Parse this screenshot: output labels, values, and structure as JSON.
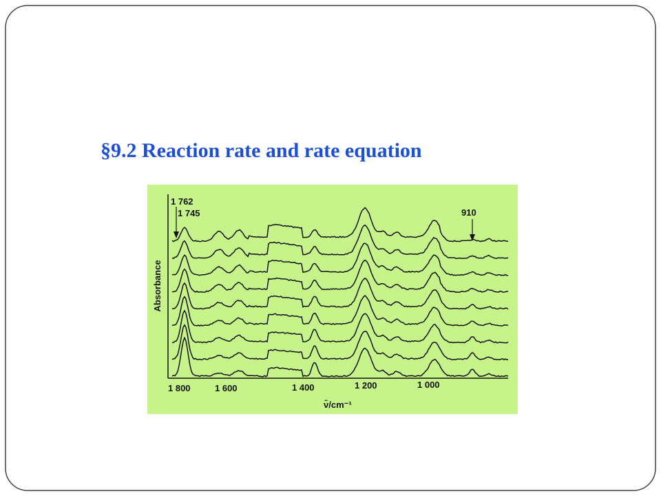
{
  "slide": {
    "title": "§9.2 Reaction rate and rate equation"
  },
  "figure": {
    "y_axis_label": "Absorbance",
    "x_axis_label": "ν̃/cm⁻¹",
    "x_tick_labels": [
      "1 800",
      "1 600",
      "1 400",
      "1 200",
      "1 000"
    ],
    "annotations": [
      "1 762",
      "1 745",
      "910"
    ]
  }
}
